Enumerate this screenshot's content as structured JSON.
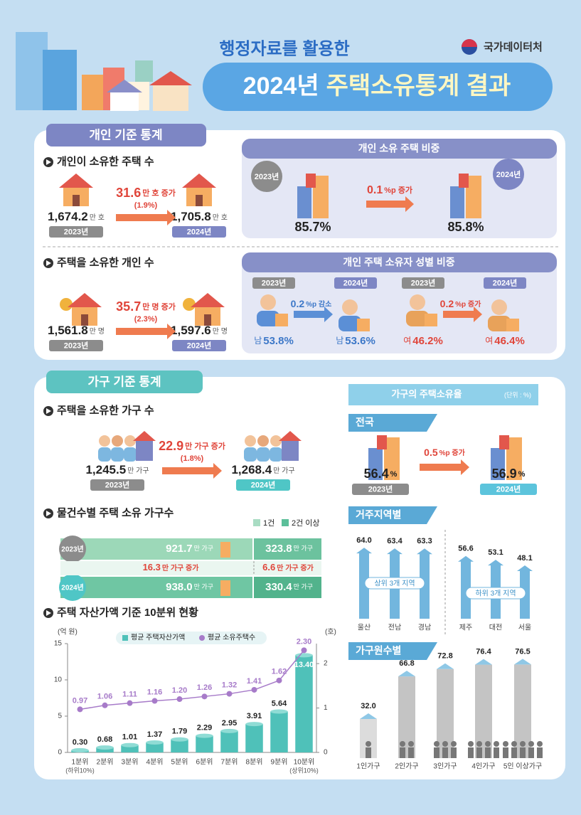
{
  "header": {
    "subtitle": "행정자료를 활용한",
    "title_year": "2024년",
    "title_main": "주택소유통계 결과",
    "agency": "국가데이터처"
  },
  "individual": {
    "tab": "개인 기준 통계",
    "houses": {
      "heading": "개인이 소유한 주택 수",
      "before": {
        "value": "1,674.2",
        "unit": "만 호",
        "year": "2023년"
      },
      "change": {
        "value": "31.6",
        "unit": "만 호 증가",
        "rate": "(1.9%)"
      },
      "after": {
        "value": "1,705.8",
        "unit": "만 호",
        "year": "2024년"
      }
    },
    "owners": {
      "heading": "주택을 소유한 개인 수",
      "before": {
        "value": "1,561.8",
        "unit": "만 명",
        "year": "2023년"
      },
      "change": {
        "value": "35.7",
        "unit": "만 명 증가",
        "rate": "(2.3%)"
      },
      "after": {
        "value": "1,597.6",
        "unit": "만 명",
        "year": "2024년"
      }
    },
    "share": {
      "heading": "개인 소유 주택 비중",
      "before": {
        "year": "2023년",
        "value": "85.7%"
      },
      "change": {
        "value": "0.1",
        "unit": "%p 증가"
      },
      "after": {
        "year": "2024년",
        "value": "85.8%"
      }
    },
    "gender": {
      "heading": "개인 주택 소유자 성별 비중",
      "male": {
        "before": {
          "year": "2023년",
          "prefix": "남",
          "value": "53.8%"
        },
        "change": {
          "value": "0.2",
          "unit": "%p 감소"
        },
        "after": {
          "year": "2024년",
          "prefix": "남",
          "value": "53.6%"
        }
      },
      "female": {
        "before": {
          "year": "2023년",
          "prefix": "여",
          "value": "46.2%"
        },
        "change": {
          "value": "0.2",
          "unit": "%p 증가"
        },
        "after": {
          "year": "2024년",
          "prefix": "여",
          "value": "46.4%"
        }
      }
    }
  },
  "household": {
    "tab": "가구 기준 통계",
    "households": {
      "heading": "주택을 소유한 가구 수",
      "before": {
        "value": "1,245.5",
        "unit": "만 가구",
        "year": "2023년"
      },
      "change": {
        "value": "22.9",
        "unit": "만 가구 증가",
        "rate": "(1.8%)"
      },
      "after": {
        "value": "1,268.4",
        "unit": "만 가구",
        "year": "2024년"
      }
    },
    "by_count": {
      "heading": "물건수별 주택 소유 가구수",
      "legend": [
        "1건",
        "2건 이상"
      ],
      "rows": [
        {
          "year": "2023년",
          "one": {
            "value": "921.7",
            "unit": "만 가구"
          },
          "two": {
            "value": "323.8",
            "unit": "만 가구"
          }
        },
        {
          "year": "2024년",
          "one": {
            "value": "938.0",
            "unit": "만 가구"
          },
          "two": {
            "value": "330.4",
            "unit": "만 가구"
          }
        }
      ],
      "change": {
        "one": {
          "value": "16.3",
          "unit": "만 가구 증가"
        },
        "two": {
          "value": "6.6",
          "unit": "만 가구 증가"
        }
      }
    },
    "decile_heading": "주택 자산가액 기준 10분위 현황",
    "rate": {
      "heading": "가구의 주택소유율",
      "unit": "(단위 : %)",
      "national": {
        "tab": "전국",
        "before": {
          "value": "56.4",
          "unit": "%",
          "year": "2023년"
        },
        "change": {
          "value": "0.5",
          "unit": "%p 증가"
        },
        "after": {
          "value": "56.9",
          "unit": "%",
          "year": "2024년"
        }
      },
      "region_tab": "거주지역별",
      "size_tab": "가구원수별"
    }
  },
  "chart_data": [
    {
      "type": "bar",
      "categories": [
        "1분위",
        "2분위",
        "3분위",
        "4분위",
        "5분위",
        "6분위",
        "7분위",
        "8분위",
        "9분위",
        "10분위"
      ],
      "first_note": "(하위10%)",
      "last_note": "(상위10%)",
      "ylabel": "(억 원)",
      "y2label": "(호)",
      "ylim": [
        0,
        15
      ],
      "yticks": [
        0,
        5,
        10,
        15
      ],
      "y2lim": [
        0,
        2.45
      ],
      "y2ticks": [
        0,
        1,
        2
      ],
      "series": [
        {
          "name": "평균 주택자산가액",
          "color": "#4fc1b9",
          "values": [
            0.3,
            0.68,
            1.01,
            1.37,
            1.79,
            2.29,
            2.95,
            3.91,
            5.64,
            13.4
          ],
          "value_labels": [
            "0.30",
            "0.68",
            "1.01",
            "1.37",
            "1.79",
            "2.29",
            "2.95",
            "3.91",
            "5.64",
            "13.40"
          ]
        },
        {
          "name": "평균 소유주택수",
          "color": "#a77bc9",
          "type": "line",
          "axis": "y2",
          "values": [
            0.97,
            1.06,
            1.11,
            1.16,
            1.2,
            1.26,
            1.32,
            1.41,
            1.62,
            2.3
          ],
          "value_labels": [
            "0.97",
            "1.06",
            "1.11",
            "1.16",
            "1.20",
            "1.26",
            "1.32",
            "1.41",
            "1.62",
            "2.30"
          ]
        }
      ]
    },
    {
      "type": "bar",
      "categories": [
        "울산",
        "전남",
        "경남",
        "제주",
        "대전",
        "서울"
      ],
      "values": [
        64.0,
        63.4,
        63.3,
        56.6,
        53.1,
        48.1
      ],
      "value_labels": [
        "64.0",
        "63.4",
        "63.3",
        "56.6",
        "53.1",
        "48.1"
      ],
      "color": "#72b6de",
      "annotations": [
        "상위 3개 지역",
        "하위 3개 지역"
      ]
    },
    {
      "type": "bar",
      "categories": [
        "1인가구",
        "2인가구",
        "3인가구",
        "4인가구",
        "5인 이상가구"
      ],
      "values": [
        32.0,
        66.8,
        72.8,
        76.4,
        76.5
      ],
      "value_labels": [
        "32.0",
        "66.8",
        "72.8",
        "76.4",
        "76.5"
      ],
      "color": "#c4c4c4"
    }
  ]
}
